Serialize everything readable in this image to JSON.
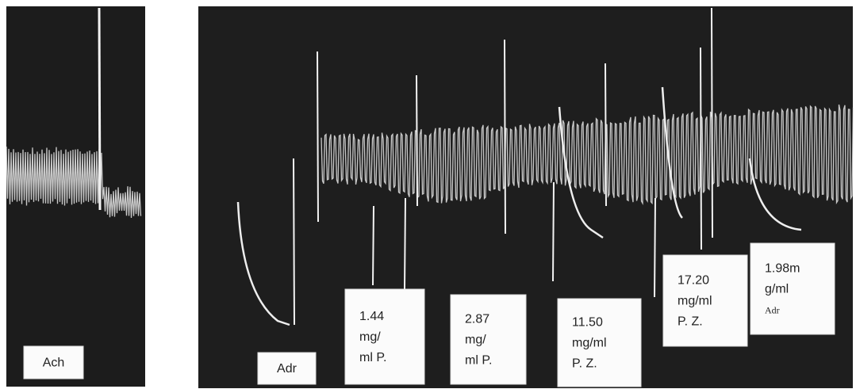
{
  "labels": [
    {
      "lines": [
        "Ach"
      ]
    },
    {
      "lines": [
        "Adr"
      ]
    },
    {
      "lines": [
        "1.44",
        "mg/",
        "ml P."
      ]
    },
    {
      "lines": [
        "2.87",
        "mg/",
        "ml P."
      ]
    },
    {
      "lines": [
        "11.50",
        "mg/ml",
        "P. Z."
      ]
    },
    {
      "lines": [
        "17.20",
        "mg/ml",
        "P. Z."
      ]
    },
    {
      "lines": [
        "1.98m",
        "g/ml",
        "Adr"
      ]
    }
  ]
}
